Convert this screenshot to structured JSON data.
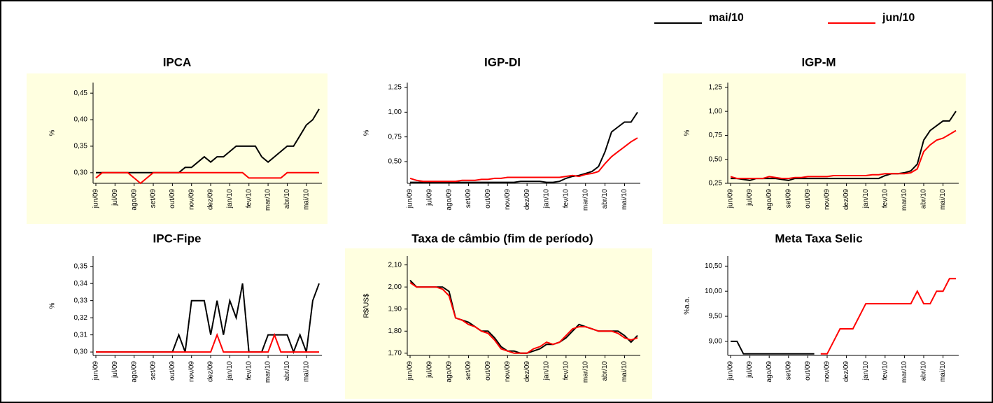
{
  "legend": [
    {
      "name": "mai/10",
      "color": "#000000"
    },
    {
      "name": "jun/10",
      "color": "#ff0000"
    }
  ],
  "chart_data": [
    {
      "type": "line",
      "title": "IPCA",
      "y_label": "%",
      "background": "#ffffe0",
      "categories": [
        "jun/09",
        null,
        null,
        "jul/09",
        null,
        null,
        "ago/09",
        null,
        null,
        "set/09",
        null,
        null,
        "out/09",
        null,
        null,
        "nov/09",
        null,
        null,
        "dez/09",
        null,
        null,
        "jan/10",
        null,
        null,
        "fev/10",
        null,
        null,
        "mar/10",
        null,
        null,
        "abr/10",
        null,
        null,
        "mai/10",
        null,
        null
      ],
      "ylim": [
        0.28,
        0.47
      ],
      "yticks": [
        {
          "value": 0.3,
          "label": "0,30"
        },
        {
          "value": 0.35,
          "label": "0,35"
        },
        {
          "value": 0.4,
          "label": "0,40"
        },
        {
          "value": 0.45,
          "label": "0,45"
        }
      ],
      "series": [
        {
          "color": "#000000",
          "values": [
            0.3,
            0.3,
            0.3,
            0.3,
            0.3,
            0.3,
            0.3,
            0.3,
            0.3,
            0.3,
            0.3,
            0.3,
            0.3,
            0.3,
            0.31,
            0.31,
            0.32,
            0.33,
            0.32,
            0.33,
            0.33,
            0.34,
            0.35,
            0.35,
            0.35,
            0.35,
            0.33,
            0.32,
            0.33,
            0.34,
            0.35,
            0.35,
            0.37,
            0.39,
            0.4,
            0.42
          ]
        },
        {
          "color": "#ff0000",
          "values": [
            0.29,
            0.3,
            0.3,
            0.3,
            0.3,
            0.3,
            0.29,
            0.28,
            0.29,
            0.3,
            0.3,
            0.3,
            0.3,
            0.3,
            0.3,
            0.3,
            0.3,
            0.3,
            0.3,
            0.3,
            0.3,
            0.3,
            0.3,
            0.3,
            0.29,
            0.29,
            0.29,
            0.29,
            0.29,
            0.29,
            0.3,
            0.3,
            0.3,
            0.3,
            0.3,
            0.3
          ]
        }
      ]
    },
    {
      "type": "line",
      "title": "IGP-DI",
      "y_label": "%",
      "categories": [
        "jun/09",
        null,
        null,
        "jul/09",
        null,
        null,
        "ago/09",
        null,
        null,
        "set/09",
        null,
        null,
        "out/09",
        null,
        null,
        "nov/09",
        null,
        null,
        "dez/09",
        null,
        null,
        "jan/10",
        null,
        null,
        "fev/10",
        null,
        null,
        "mar/10",
        null,
        null,
        "abr/10",
        null,
        null,
        "mai/10",
        null,
        null
      ],
      "ylim": [
        0.28,
        1.3
      ],
      "yticks": [
        {
          "value": 0.5,
          "label": "0,50"
        },
        {
          "value": 0.75,
          "label": "0,75"
        },
        {
          "value": 1.0,
          "label": "1,00"
        },
        {
          "value": 1.25,
          "label": "1,25"
        }
      ],
      "series": [
        {
          "color": "#000000",
          "values": [
            0.29,
            0.29,
            0.29,
            0.29,
            0.29,
            0.29,
            0.29,
            0.29,
            0.29,
            0.29,
            0.29,
            0.29,
            0.29,
            0.29,
            0.29,
            0.29,
            0.29,
            0.3,
            0.3,
            0.3,
            0.3,
            0.29,
            0.29,
            0.3,
            0.33,
            0.35,
            0.36,
            0.38,
            0.4,
            0.45,
            0.6,
            0.8,
            0.85,
            0.9,
            0.9,
            1.0
          ]
        },
        {
          "color": "#ff0000",
          "values": [
            0.33,
            0.31,
            0.3,
            0.3,
            0.3,
            0.3,
            0.3,
            0.3,
            0.31,
            0.31,
            0.31,
            0.32,
            0.32,
            0.33,
            0.33,
            0.34,
            0.34,
            0.34,
            0.34,
            0.34,
            0.34,
            0.34,
            0.34,
            0.34,
            0.35,
            0.36,
            0.35,
            0.37,
            0.38,
            0.4,
            0.48,
            0.55,
            0.6,
            0.65,
            0.7,
            0.74
          ]
        }
      ]
    },
    {
      "type": "line",
      "title": "IGP-M",
      "y_label": "%",
      "background": "#ffffe0",
      "categories": [
        "jun/09",
        null,
        null,
        "jul/09",
        null,
        null,
        "ago/09",
        null,
        null,
        "set/09",
        null,
        null,
        "out/09",
        null,
        null,
        "nov/09",
        null,
        null,
        "dez/09",
        null,
        null,
        "jan/10",
        null,
        null,
        "fev/10",
        null,
        null,
        "mar/10",
        null,
        null,
        "abr/10",
        null,
        null,
        "mai/10",
        null,
        null
      ],
      "ylim": [
        0.25,
        1.3
      ],
      "yticks": [
        {
          "value": 0.25,
          "label": "0,25"
        },
        {
          "value": 0.5,
          "label": "0,50"
        },
        {
          "value": 0.75,
          "label": "0,75"
        },
        {
          "value": 1.0,
          "label": "1,00"
        },
        {
          "value": 1.25,
          "label": "1,25"
        }
      ],
      "series": [
        {
          "color": "#000000",
          "values": [
            0.3,
            0.3,
            0.29,
            0.28,
            0.3,
            0.3,
            0.3,
            0.3,
            0.29,
            0.28,
            0.3,
            0.3,
            0.3,
            0.3,
            0.3,
            0.3,
            0.3,
            0.3,
            0.3,
            0.3,
            0.3,
            0.3,
            0.3,
            0.3,
            0.33,
            0.35,
            0.35,
            0.36,
            0.38,
            0.45,
            0.7,
            0.8,
            0.85,
            0.9,
            0.9,
            1.0
          ]
        },
        {
          "color": "#ff0000",
          "values": [
            0.32,
            0.3,
            0.3,
            0.3,
            0.3,
            0.3,
            0.32,
            0.31,
            0.3,
            0.3,
            0.31,
            0.31,
            0.32,
            0.32,
            0.32,
            0.32,
            0.33,
            0.33,
            0.33,
            0.33,
            0.33,
            0.33,
            0.34,
            0.34,
            0.35,
            0.35,
            0.35,
            0.35,
            0.36,
            0.4,
            0.58,
            0.65,
            0.7,
            0.72,
            0.76,
            0.8
          ]
        }
      ]
    },
    {
      "type": "line",
      "title": "IPC-Fipe",
      "y_label": "%",
      "categories": [
        "jun/09",
        null,
        null,
        "jul/09",
        null,
        null,
        "ago/09",
        null,
        null,
        "set/09",
        null,
        null,
        "out/09",
        null,
        null,
        "nov/09",
        null,
        null,
        "dez/09",
        null,
        null,
        "jan/10",
        null,
        null,
        "fev/10",
        null,
        null,
        "mar/10",
        null,
        null,
        "abr/10",
        null,
        null,
        "mai/10",
        null,
        null
      ],
      "ylim": [
        0.298,
        0.356
      ],
      "yticks": [
        {
          "value": 0.3,
          "label": "0,30"
        },
        {
          "value": 0.31,
          "label": "0,31"
        },
        {
          "value": 0.32,
          "label": "0,32"
        },
        {
          "value": 0.33,
          "label": "0,33"
        },
        {
          "value": 0.34,
          "label": "0,34"
        },
        {
          "value": 0.35,
          "label": "0,35"
        }
      ],
      "series": [
        {
          "color": "#000000",
          "values": [
            0.3,
            0.3,
            0.3,
            0.3,
            0.3,
            0.3,
            0.3,
            0.3,
            0.3,
            0.3,
            0.3,
            0.3,
            0.3,
            0.31,
            0.3,
            0.33,
            0.33,
            0.33,
            0.31,
            0.33,
            0.31,
            0.33,
            0.32,
            0.34,
            0.3,
            0.3,
            0.3,
            0.31,
            0.31,
            0.31,
            0.31,
            0.3,
            0.31,
            0.3,
            0.33,
            0.34
          ]
        },
        {
          "color": "#ff0000",
          "values": [
            0.3,
            0.3,
            0.3,
            0.3,
            0.3,
            0.3,
            0.3,
            0.3,
            0.3,
            0.3,
            0.3,
            0.3,
            0.3,
            0.3,
            0.3,
            0.3,
            0.3,
            0.3,
            0.3,
            0.31,
            0.3,
            0.3,
            0.3,
            0.3,
            0.3,
            0.3,
            0.3,
            0.3,
            0.31,
            0.3,
            0.3,
            0.3,
            0.3,
            0.3,
            0.3,
            0.3
          ]
        }
      ]
    },
    {
      "type": "line",
      "title": "Taxa de câmbio (fim de período)",
      "y_label": "R$/US$",
      "background": "#ffffe0",
      "categories": [
        "jun/09",
        null,
        null,
        "jul/09",
        null,
        null,
        "ago/09",
        null,
        null,
        "set/09",
        null,
        null,
        "out/09",
        null,
        null,
        "nov/09",
        null,
        null,
        "dez/09",
        null,
        null,
        "jan/10",
        null,
        null,
        "fev/10",
        null,
        null,
        "mar/10",
        null,
        null,
        "abr/10",
        null,
        null,
        "mai/10",
        null,
        null
      ],
      "ylim": [
        1.69,
        2.14
      ],
      "yticks": [
        {
          "value": 1.7,
          "label": "1,70"
        },
        {
          "value": 1.8,
          "label": "1,80"
        },
        {
          "value": 1.9,
          "label": "1,90"
        },
        {
          "value": 2.0,
          "label": "2,00"
        },
        {
          "value": 2.1,
          "label": "2,10"
        }
      ],
      "series": [
        {
          "color": "#000000",
          "values": [
            2.03,
            2.0,
            2.0,
            2.0,
            2.0,
            2.0,
            1.98,
            1.86,
            1.85,
            1.84,
            1.82,
            1.8,
            1.8,
            1.77,
            1.73,
            1.71,
            1.71,
            1.7,
            1.7,
            1.71,
            1.72,
            1.74,
            1.74,
            1.75,
            1.77,
            1.8,
            1.83,
            1.82,
            1.81,
            1.8,
            1.8,
            1.8,
            1.8,
            1.78,
            1.75,
            1.78
          ]
        },
        {
          "color": "#ff0000",
          "values": [
            2.02,
            2.0,
            2.0,
            2.0,
            2.0,
            1.99,
            1.96,
            1.86,
            1.85,
            1.83,
            1.82,
            1.8,
            1.79,
            1.76,
            1.72,
            1.71,
            1.7,
            1.7,
            1.7,
            1.72,
            1.73,
            1.75,
            1.74,
            1.75,
            1.78,
            1.81,
            1.82,
            1.82,
            1.81,
            1.8,
            1.8,
            1.8,
            1.79,
            1.77,
            1.76,
            1.77
          ]
        }
      ]
    },
    {
      "type": "line",
      "title": "Meta Taxa Selic",
      "y_label": "%a.a.",
      "categories": [
        "jun/09",
        null,
        null,
        "jul/09",
        null,
        null,
        "ago/09",
        null,
        null,
        "set/09",
        null,
        null,
        "out/09",
        null,
        null,
        "nov/09",
        null,
        null,
        "dez/09",
        null,
        null,
        "jan/10",
        null,
        null,
        "fev/10",
        null,
        null,
        "mar/10",
        null,
        null,
        "abr/10",
        null,
        null,
        "mai/10",
        null,
        null
      ],
      "ylim": [
        8.72,
        10.7
      ],
      "yticks": [
        {
          "value": 9.0,
          "label": "9,00"
        },
        {
          "value": 9.5,
          "label": "9,50"
        },
        {
          "value": 10.0,
          "label": "10,00"
        },
        {
          "value": 10.5,
          "label": "10,50"
        }
      ],
      "series": [
        {
          "color": "#000000",
          "values": [
            9.0,
            9.0,
            8.75,
            8.75,
            8.75,
            8.75,
            8.75,
            8.75,
            8.75,
            8.75,
            8.75,
            8.75,
            8.75,
            8.75,
            null,
            null,
            null,
            null,
            null,
            null,
            null,
            null,
            null,
            null,
            null,
            null,
            null,
            null,
            null,
            null,
            null,
            null,
            null,
            null,
            null,
            null
          ]
        },
        {
          "color": "#ff0000",
          "values": [
            null,
            null,
            null,
            null,
            null,
            null,
            null,
            null,
            null,
            null,
            null,
            null,
            null,
            null,
            8.75,
            8.75,
            9.0,
            9.25,
            9.25,
            9.25,
            9.5,
            9.75,
            9.75,
            9.75,
            9.75,
            9.75,
            9.75,
            9.75,
            9.75,
            10.0,
            9.75,
            9.75,
            10.0,
            10.0,
            10.25,
            10.25
          ]
        }
      ]
    }
  ]
}
